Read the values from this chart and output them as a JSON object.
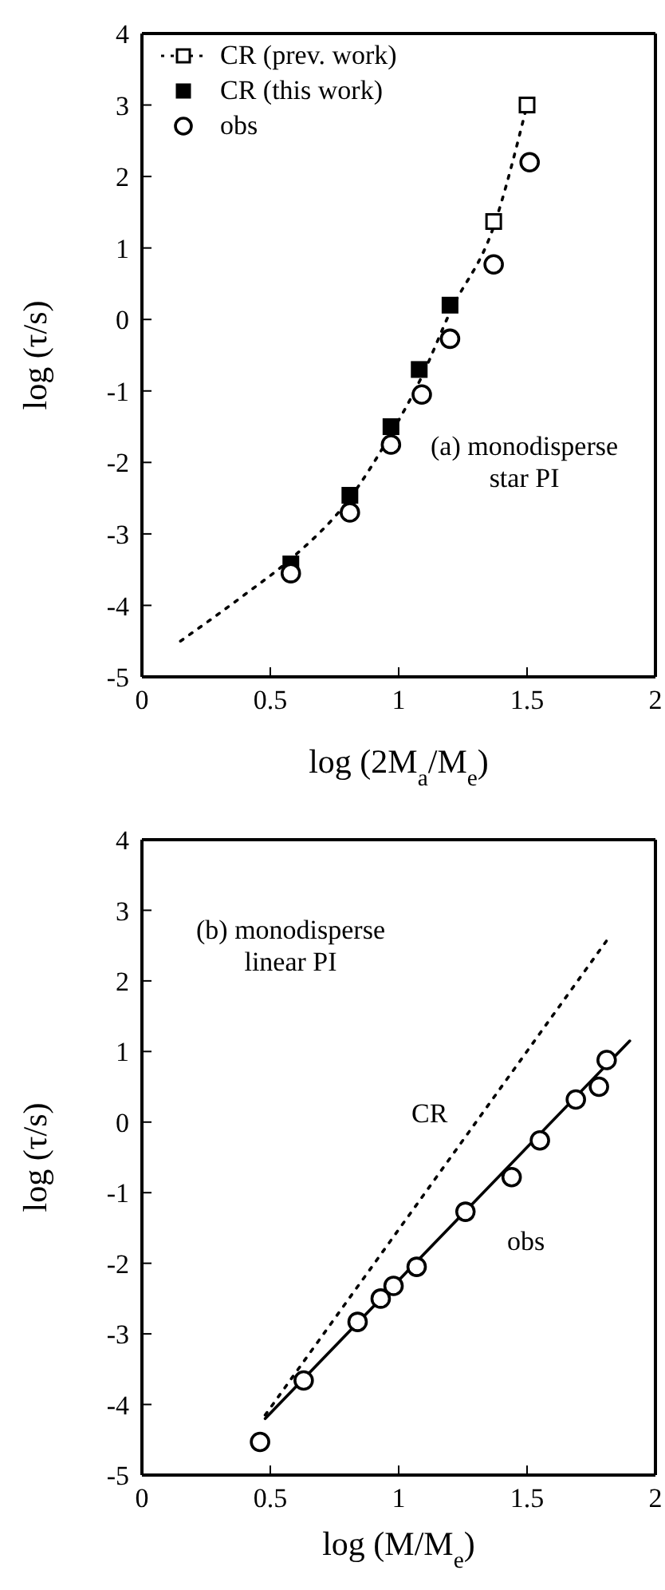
{
  "chart_data": [
    {
      "type": "scatter",
      "xlabel": "log (2M$_{a}$/M$_{e}$)",
      "ylabel": "log (τ/s)",
      "xlim": [
        0,
        2
      ],
      "ylim": [
        -5,
        4
      ],
      "xticks": [
        0,
        0.5,
        1,
        1.5,
        2
      ],
      "yticks": [
        -5,
        -4,
        -3,
        -2,
        -1,
        0,
        1,
        2,
        3,
        4
      ],
      "legend": "top left",
      "annotations": [
        "(a) monodisperse\nstar PI"
      ],
      "series": [
        {
          "name": "CR (prev. work)",
          "color": "#000000",
          "marker": "square",
          "x": [
            1.37,
            1.5
          ],
          "values": [
            1.37,
            3.0
          ]
        },
        {
          "name": "CR (this work)",
          "color": "#000000",
          "marker": "square",
          "x": [
            0.58,
            0.81,
            0.97,
            1.08,
            1.2
          ],
          "values": [
            -3.42,
            -2.46,
            -1.5,
            -0.7,
            0.2
          ]
        },
        {
          "name": "obs",
          "color": "#000000",
          "marker": "circle",
          "x": [
            0.58,
            0.81,
            0.97,
            1.09,
            1.2,
            1.37,
            1.51
          ],
          "values": [
            -3.55,
            -2.7,
            -1.75,
            -1.05,
            -0.27,
            0.77,
            2.2
          ]
        },
        {
          "type": "line",
          "color": "#000000",
          "marker": "none",
          "line_style": "dotted",
          "x": [
            0.15,
            0.4,
            0.58,
            0.81,
            0.97,
            1.09,
            1.2,
            1.37,
            1.5
          ],
          "values": [
            -4.5,
            -3.85,
            -3.35,
            -2.5,
            -1.6,
            -0.8,
            0.1,
            1.3,
            3.0
          ]
        }
      ]
    },
    {
      "type": "scatter",
      "xlabel": "log (M/M$_{e}$)",
      "ylabel": "log (τ/s)",
      "xlim": [
        0,
        2
      ],
      "ylim": [
        -5,
        4
      ],
      "xticks": [
        0,
        0.5,
        1,
        1.5,
        2
      ],
      "yticks": [
        -5,
        -4,
        -3,
        -2,
        -1,
        0,
        1,
        2,
        3,
        4
      ],
      "annotations": [
        "(b) monodisperse\nlinear PI"
      ],
      "series": [
        {
          "name": "CR",
          "type": "line",
          "color": "#000000",
          "marker": "none",
          "line_style": "dotted",
          "x": [
            0.48,
            1.81
          ],
          "values": [
            -4.15,
            2.57
          ]
        },
        {
          "name": "obs",
          "color": "#000000",
          "marker": "circle",
          "x": [
            0.46,
            0.63,
            0.84,
            0.93,
            0.98,
            1.07,
            1.26,
            1.44,
            1.55,
            1.69,
            1.78,
            1.81
          ],
          "values": [
            -4.53,
            -3.66,
            -2.83,
            -2.5,
            -2.32,
            -2.05,
            -1.27,
            -0.78,
            -0.26,
            0.32,
            0.5,
            0.88
          ]
        },
        {
          "type": "line",
          "color": "#000000",
          "marker": "none",
          "line_style": "solid",
          "x": [
            0.48,
            1.9
          ],
          "values": [
            -4.2,
            1.15
          ]
        }
      ]
    }
  ]
}
